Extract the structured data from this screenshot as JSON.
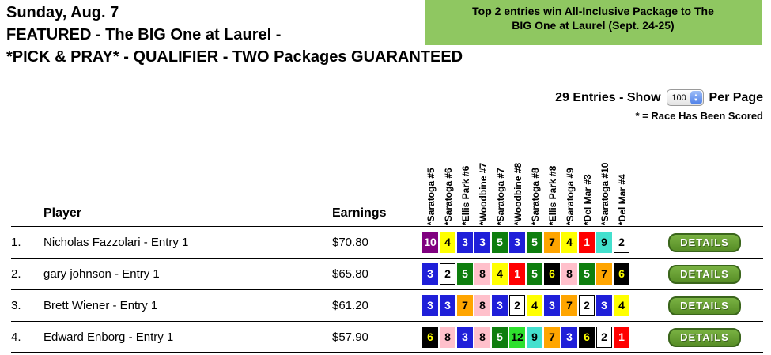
{
  "title": {
    "line1": "Sunday, Aug. 7",
    "line2": "FEATURED - The BIG One at Laurel -",
    "line3": "*PICK & PRAY* - QUALIFIER - TWO Packages GUARANTEED"
  },
  "banner": {
    "line1": "Top 2 entries win All-Inclusive Package to The",
    "line2": "BIG One at Laurel (Sept. 24-25)",
    "bg_color": "#8FC761"
  },
  "controls": {
    "entries_text": "29 Entries - Show",
    "page_size_value": "100",
    "per_page_text": "Per Page",
    "scored_note": "* = Race Has Been Scored"
  },
  "table": {
    "player_header": "Player",
    "earnings_header": "Earnings",
    "details_button_label": "DETAILS",
    "races": [
      "*Saratoga #5",
      "*Saratoga #6",
      "*Ellis Park #6",
      "*Woodbine #7",
      "*Saratoga #7",
      "*Woodbine #8",
      "*Saratoga #8",
      "*Ellis Park #8",
      "*Saratoga #9",
      "*Del Mar #3",
      "*Saratoga #10",
      "*Del Mar #4"
    ],
    "rows": [
      {
        "rank": "1.",
        "player": "Nicholas Fazzolari - Entry 1",
        "earnings": "$70.80",
        "picks": [
          10,
          4,
          3,
          3,
          5,
          3,
          5,
          7,
          4,
          1,
          9,
          2
        ]
      },
      {
        "rank": "2.",
        "player": "gary johnson - Entry 1",
        "earnings": "$65.80",
        "picks": [
          3,
          2,
          5,
          8,
          4,
          1,
          5,
          6,
          8,
          5,
          7,
          6
        ]
      },
      {
        "rank": "3.",
        "player": "Brett Wiener - Entry 1",
        "earnings": "$61.20",
        "picks": [
          3,
          3,
          7,
          8,
          3,
          2,
          4,
          3,
          7,
          2,
          3,
          4
        ]
      },
      {
        "rank": "4.",
        "player": "Edward Enborg - Entry 1",
        "earnings": "$57.90",
        "picks": [
          6,
          8,
          3,
          8,
          5,
          12,
          9,
          7,
          3,
          6,
          2,
          1
        ]
      }
    ],
    "saddle_cloth_colors": {
      "1": {
        "bg": "#FF0000",
        "fg": "#FFFFFF"
      },
      "2": {
        "bg": "#FFFFFF",
        "fg": "#000000",
        "border": "#000000"
      },
      "3": {
        "bg": "#1F1FD9",
        "fg": "#FFFFFF"
      },
      "4": {
        "bg": "#FFFF00",
        "fg": "#000000"
      },
      "5": {
        "bg": "#0E7E0E",
        "fg": "#FFFFFF"
      },
      "6": {
        "bg": "#000000",
        "fg": "#FFFF00"
      },
      "7": {
        "bg": "#FFA500",
        "fg": "#000000"
      },
      "8": {
        "bg": "#FFC0CB",
        "fg": "#000000"
      },
      "9": {
        "bg": "#43E0CE",
        "fg": "#000000"
      },
      "10": {
        "bg": "#800080",
        "fg": "#FFFFFF"
      },
      "12": {
        "bg": "#2EE02E",
        "fg": "#000000"
      }
    },
    "details_button_colors": {
      "fill_top": "#7AB243",
      "fill_bottom": "#578D26",
      "border": "#3A651B"
    }
  }
}
